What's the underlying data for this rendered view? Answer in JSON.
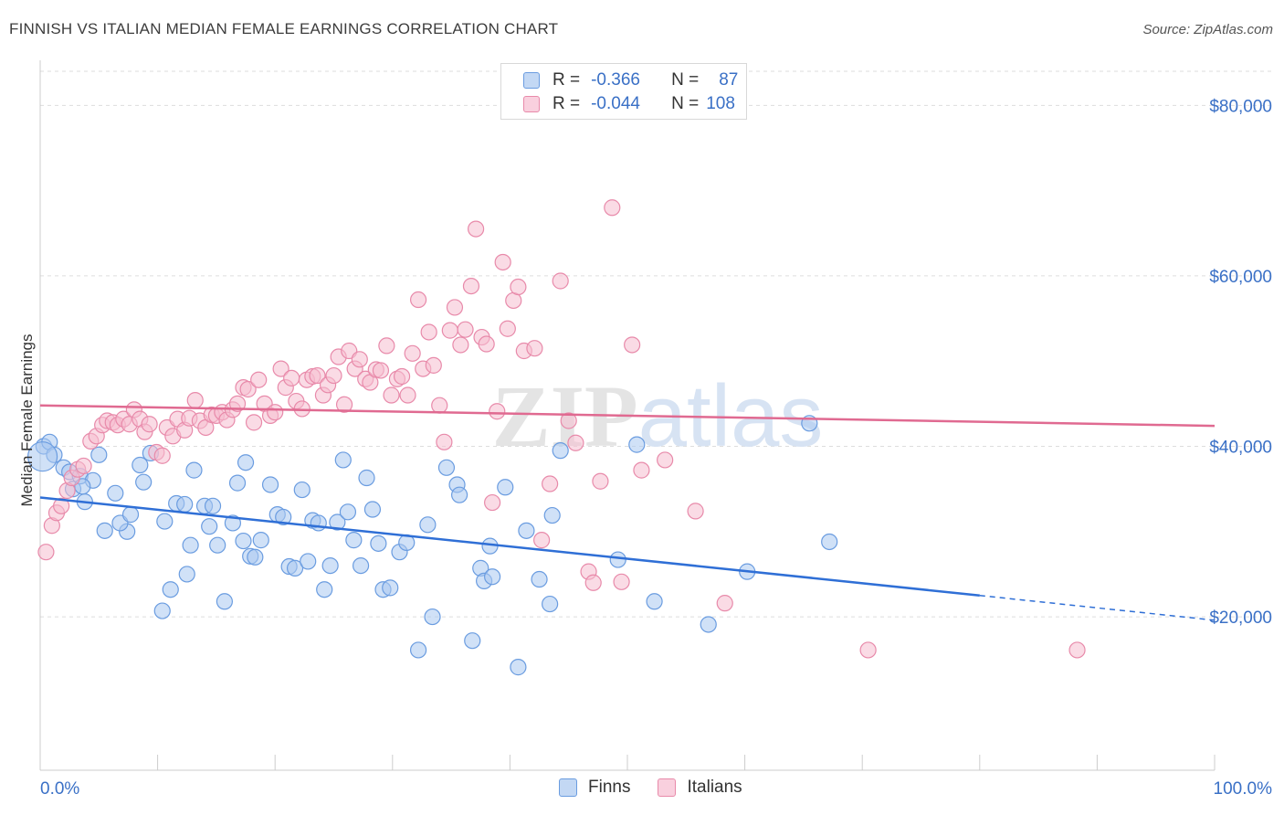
{
  "title": "FINNISH VS ITALIAN MEDIAN FEMALE EARNINGS CORRELATION CHART",
  "source": "Source: ZipAtlas.com",
  "watermark": "ZIPatlas",
  "legend": {
    "r_label": "R =",
    "n_label": "N =",
    "rows": [
      {
        "r": "-0.366",
        "n": "87",
        "color": "#a9c8f0",
        "border": "#6a9ce0"
      },
      {
        "r": "-0.044",
        "n": "108",
        "color": "#f6bdd0",
        "border": "#e88aaa"
      }
    ]
  },
  "bottom_legend": [
    {
      "label": "Finns",
      "color": "#a9c8f0",
      "border": "#6a9ce0"
    },
    {
      "label": "Italians",
      "color": "#f6bdd0",
      "border": "#e88aaa"
    }
  ],
  "chart_data": {
    "type": "scatter",
    "title": "FINNISH VS ITALIAN MEDIAN FEMALE EARNINGS CORRELATION CHART",
    "xlabel": "",
    "ylabel": "Median Female Earnings",
    "x_tick_labels": [
      "0.0%",
      "100.0%"
    ],
    "y_tick_labels": [
      "$20,000",
      "$40,000",
      "$60,000",
      "$80,000"
    ],
    "y_ticks": [
      20000,
      40000,
      60000,
      80000
    ],
    "xlim": [
      0,
      100
    ],
    "ylim": [
      2000,
      84000
    ],
    "grid": true,
    "legend_position": "top-center",
    "series": [
      {
        "name": "Finns",
        "color": "#6a9ce0",
        "fill": "#a9c8f0",
        "trend": {
          "x0": 0,
          "y0": 34000,
          "x1": 80,
          "y1": 22500,
          "dashed_to": 100,
          "dashed_y": 19600,
          "color": "#2f6fd6"
        },
        "points": [
          [
            0.3,
            40000
          ],
          [
            0.8,
            40500
          ],
          [
            1.2,
            39000
          ],
          [
            2.0,
            37500
          ],
          [
            2.5,
            37000
          ],
          [
            2.8,
            35000
          ],
          [
            3.4,
            36500
          ],
          [
            3.8,
            33500
          ],
          [
            4.5,
            36000
          ],
          [
            5.0,
            39000
          ],
          [
            6.4,
            34500
          ],
          [
            7.4,
            30000
          ],
          [
            6.8,
            31000
          ],
          [
            7.7,
            32000
          ],
          [
            8.5,
            37800
          ],
          [
            8.8,
            35800
          ],
          [
            9.4,
            39200
          ],
          [
            10.4,
            20700
          ],
          [
            10.6,
            31200
          ],
          [
            11.1,
            23200
          ],
          [
            11.6,
            33300
          ],
          [
            12.3,
            33200
          ],
          [
            12.5,
            25000
          ],
          [
            12.8,
            28400
          ],
          [
            13.1,
            37200
          ],
          [
            14.0,
            33000
          ],
          [
            14.4,
            30600
          ],
          [
            14.7,
            33000
          ],
          [
            15.1,
            28400
          ],
          [
            15.7,
            21800
          ],
          [
            16.4,
            31000
          ],
          [
            16.8,
            35700
          ],
          [
            17.3,
            28900
          ],
          [
            17.5,
            38100
          ],
          [
            17.9,
            27100
          ],
          [
            18.3,
            27000
          ],
          [
            18.8,
            29000
          ],
          [
            19.6,
            35500
          ],
          [
            20.2,
            32000
          ],
          [
            20.7,
            31700
          ],
          [
            21.2,
            25900
          ],
          [
            21.7,
            25700
          ],
          [
            22.3,
            34900
          ],
          [
            22.8,
            26500
          ],
          [
            23.2,
            31300
          ],
          [
            23.7,
            31000
          ],
          [
            24.2,
            23200
          ],
          [
            24.7,
            26000
          ],
          [
            25.3,
            31100
          ],
          [
            25.8,
            38400
          ],
          [
            26.2,
            32300
          ],
          [
            26.7,
            29000
          ],
          [
            27.3,
            26000
          ],
          [
            27.8,
            36300
          ],
          [
            28.3,
            32600
          ],
          [
            28.8,
            28600
          ],
          [
            29.2,
            23200
          ],
          [
            29.8,
            23400
          ],
          [
            30.6,
            27600
          ],
          [
            31.2,
            28700
          ],
          [
            32.2,
            16100
          ],
          [
            33.0,
            30800
          ],
          [
            33.4,
            20000
          ],
          [
            34.6,
            37500
          ],
          [
            35.5,
            35500
          ],
          [
            35.7,
            34300
          ],
          [
            36.8,
            17200
          ],
          [
            37.5,
            25700
          ],
          [
            37.8,
            24200
          ],
          [
            38.3,
            28300
          ],
          [
            38.5,
            24700
          ],
          [
            39.6,
            35200
          ],
          [
            40.7,
            14100
          ],
          [
            41.4,
            30100
          ],
          [
            42.5,
            24400
          ],
          [
            43.4,
            21500
          ],
          [
            43.6,
            31900
          ],
          [
            44.3,
            39500
          ],
          [
            49.2,
            26700
          ],
          [
            50.8,
            40200
          ],
          [
            52.3,
            21800
          ],
          [
            56.9,
            19100
          ],
          [
            60.2,
            25300
          ],
          [
            65.5,
            42700
          ],
          [
            67.2,
            28800
          ],
          [
            3.6,
            35300
          ],
          [
            5.5,
            30100
          ]
        ]
      },
      {
        "name": "Italians",
        "color": "#e88aaa",
        "fill": "#f6bdd0",
        "trend": {
          "x0": 0,
          "y0": 44800,
          "x1": 100,
          "y1": 42400,
          "color": "#e06a91"
        },
        "points": [
          [
            0.5,
            27600
          ],
          [
            1.0,
            30700
          ],
          [
            1.4,
            32200
          ],
          [
            1.8,
            33000
          ],
          [
            2.3,
            34800
          ],
          [
            2.7,
            36300
          ],
          [
            3.2,
            37300
          ],
          [
            3.7,
            37700
          ],
          [
            4.3,
            40600
          ],
          [
            4.8,
            41200
          ],
          [
            5.3,
            42500
          ],
          [
            5.7,
            43000
          ],
          [
            6.2,
            42800
          ],
          [
            6.6,
            42500
          ],
          [
            7.1,
            43200
          ],
          [
            7.6,
            42600
          ],
          [
            8.0,
            44300
          ],
          [
            8.5,
            43200
          ],
          [
            8.9,
            41700
          ],
          [
            9.3,
            42600
          ],
          [
            9.9,
            39300
          ],
          [
            10.4,
            38900
          ],
          [
            10.8,
            42200
          ],
          [
            11.3,
            41200
          ],
          [
            11.7,
            43200
          ],
          [
            12.3,
            41900
          ],
          [
            12.7,
            43300
          ],
          [
            13.2,
            45400
          ],
          [
            13.6,
            43000
          ],
          [
            14.1,
            42200
          ],
          [
            14.6,
            43700
          ],
          [
            15.0,
            43600
          ],
          [
            15.5,
            44000
          ],
          [
            15.9,
            43100
          ],
          [
            16.4,
            44300
          ],
          [
            16.8,
            45000
          ],
          [
            17.3,
            46900
          ],
          [
            17.7,
            46700
          ],
          [
            18.2,
            42800
          ],
          [
            18.6,
            47800
          ],
          [
            19.1,
            45000
          ],
          [
            19.6,
            43600
          ],
          [
            20.0,
            44000
          ],
          [
            20.5,
            49100
          ],
          [
            20.9,
            46900
          ],
          [
            21.4,
            48000
          ],
          [
            21.8,
            45300
          ],
          [
            22.3,
            44400
          ],
          [
            22.7,
            47800
          ],
          [
            23.2,
            48200
          ],
          [
            23.6,
            48300
          ],
          [
            24.1,
            46000
          ],
          [
            24.5,
            47200
          ],
          [
            25.0,
            48300
          ],
          [
            25.4,
            50500
          ],
          [
            25.9,
            44900
          ],
          [
            26.3,
            51200
          ],
          [
            26.8,
            49100
          ],
          [
            27.2,
            50200
          ],
          [
            27.7,
            47900
          ],
          [
            28.1,
            47500
          ],
          [
            28.6,
            49000
          ],
          [
            29.0,
            48900
          ],
          [
            29.5,
            51800
          ],
          [
            29.9,
            46000
          ],
          [
            30.4,
            47900
          ],
          [
            30.8,
            48200
          ],
          [
            31.3,
            46000
          ],
          [
            31.7,
            50900
          ],
          [
            32.2,
            57200
          ],
          [
            32.6,
            49100
          ],
          [
            33.1,
            53400
          ],
          [
            33.5,
            49500
          ],
          [
            34.0,
            44800
          ],
          [
            34.4,
            40500
          ],
          [
            34.9,
            53600
          ],
          [
            35.3,
            56300
          ],
          [
            35.8,
            51900
          ],
          [
            36.2,
            53700
          ],
          [
            36.7,
            58800
          ],
          [
            37.1,
            65500
          ],
          [
            37.6,
            52800
          ],
          [
            38.0,
            52000
          ],
          [
            38.5,
            33400
          ],
          [
            38.9,
            44100
          ],
          [
            39.4,
            61600
          ],
          [
            39.8,
            53800
          ],
          [
            40.3,
            57100
          ],
          [
            40.7,
            58700
          ],
          [
            41.2,
            51200
          ],
          [
            42.1,
            51500
          ],
          [
            42.7,
            29000
          ],
          [
            43.4,
            35600
          ],
          [
            44.3,
            59400
          ],
          [
            45.0,
            43000
          ],
          [
            45.6,
            40400
          ],
          [
            46.7,
            25300
          ],
          [
            47.1,
            24000
          ],
          [
            47.7,
            35900
          ],
          [
            48.7,
            68000
          ],
          [
            49.5,
            24100
          ],
          [
            50.4,
            51900
          ],
          [
            51.2,
            37200
          ],
          [
            53.2,
            38400
          ],
          [
            55.8,
            32400
          ],
          [
            58.3,
            21600
          ],
          [
            70.5,
            16100
          ],
          [
            88.3,
            16100
          ]
        ]
      }
    ]
  }
}
